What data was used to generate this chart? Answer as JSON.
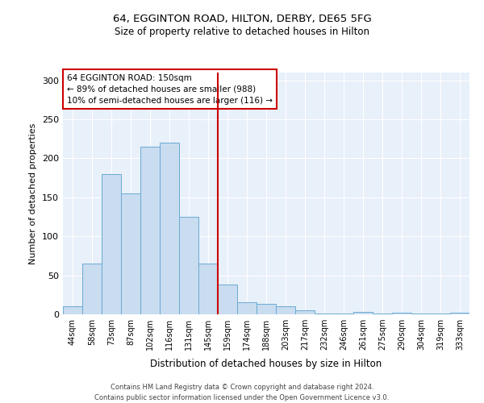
{
  "title_line1": "64, EGGINTON ROAD, HILTON, DERBY, DE65 5FG",
  "title_line2": "Size of property relative to detached houses in Hilton",
  "xlabel": "Distribution of detached houses by size in Hilton",
  "ylabel": "Number of detached properties",
  "categories": [
    "44sqm",
    "58sqm",
    "73sqm",
    "87sqm",
    "102sqm",
    "116sqm",
    "131sqm",
    "145sqm",
    "159sqm",
    "174sqm",
    "188sqm",
    "203sqm",
    "217sqm",
    "232sqm",
    "246sqm",
    "261sqm",
    "275sqm",
    "290sqm",
    "304sqm",
    "319sqm",
    "333sqm"
  ],
  "values": [
    10,
    65,
    180,
    155,
    215,
    220,
    125,
    65,
    38,
    15,
    13,
    10,
    5,
    1,
    1,
    3,
    1,
    2,
    1,
    1,
    2
  ],
  "bar_color": "#c9dcf0",
  "bar_edge_color": "#6aaad4",
  "background_color": "#e8f0fa",
  "grid_color": "#ffffff",
  "vline_x": 7.5,
  "vline_color": "#cc0000",
  "annotation_text": "64 EGGINTON ROAD: 150sqm\n← 89% of detached houses are smaller (988)\n10% of semi-detached houses are larger (116) →",
  "annotation_box_facecolor": "#ffffff",
  "annotation_box_edgecolor": "#cc0000",
  "footer_line1": "Contains HM Land Registry data © Crown copyright and database right 2024.",
  "footer_line2": "Contains public sector information licensed under the Open Government Licence v3.0.",
  "ylim": [
    0,
    310
  ],
  "yticks": [
    0,
    50,
    100,
    150,
    200,
    250,
    300
  ]
}
